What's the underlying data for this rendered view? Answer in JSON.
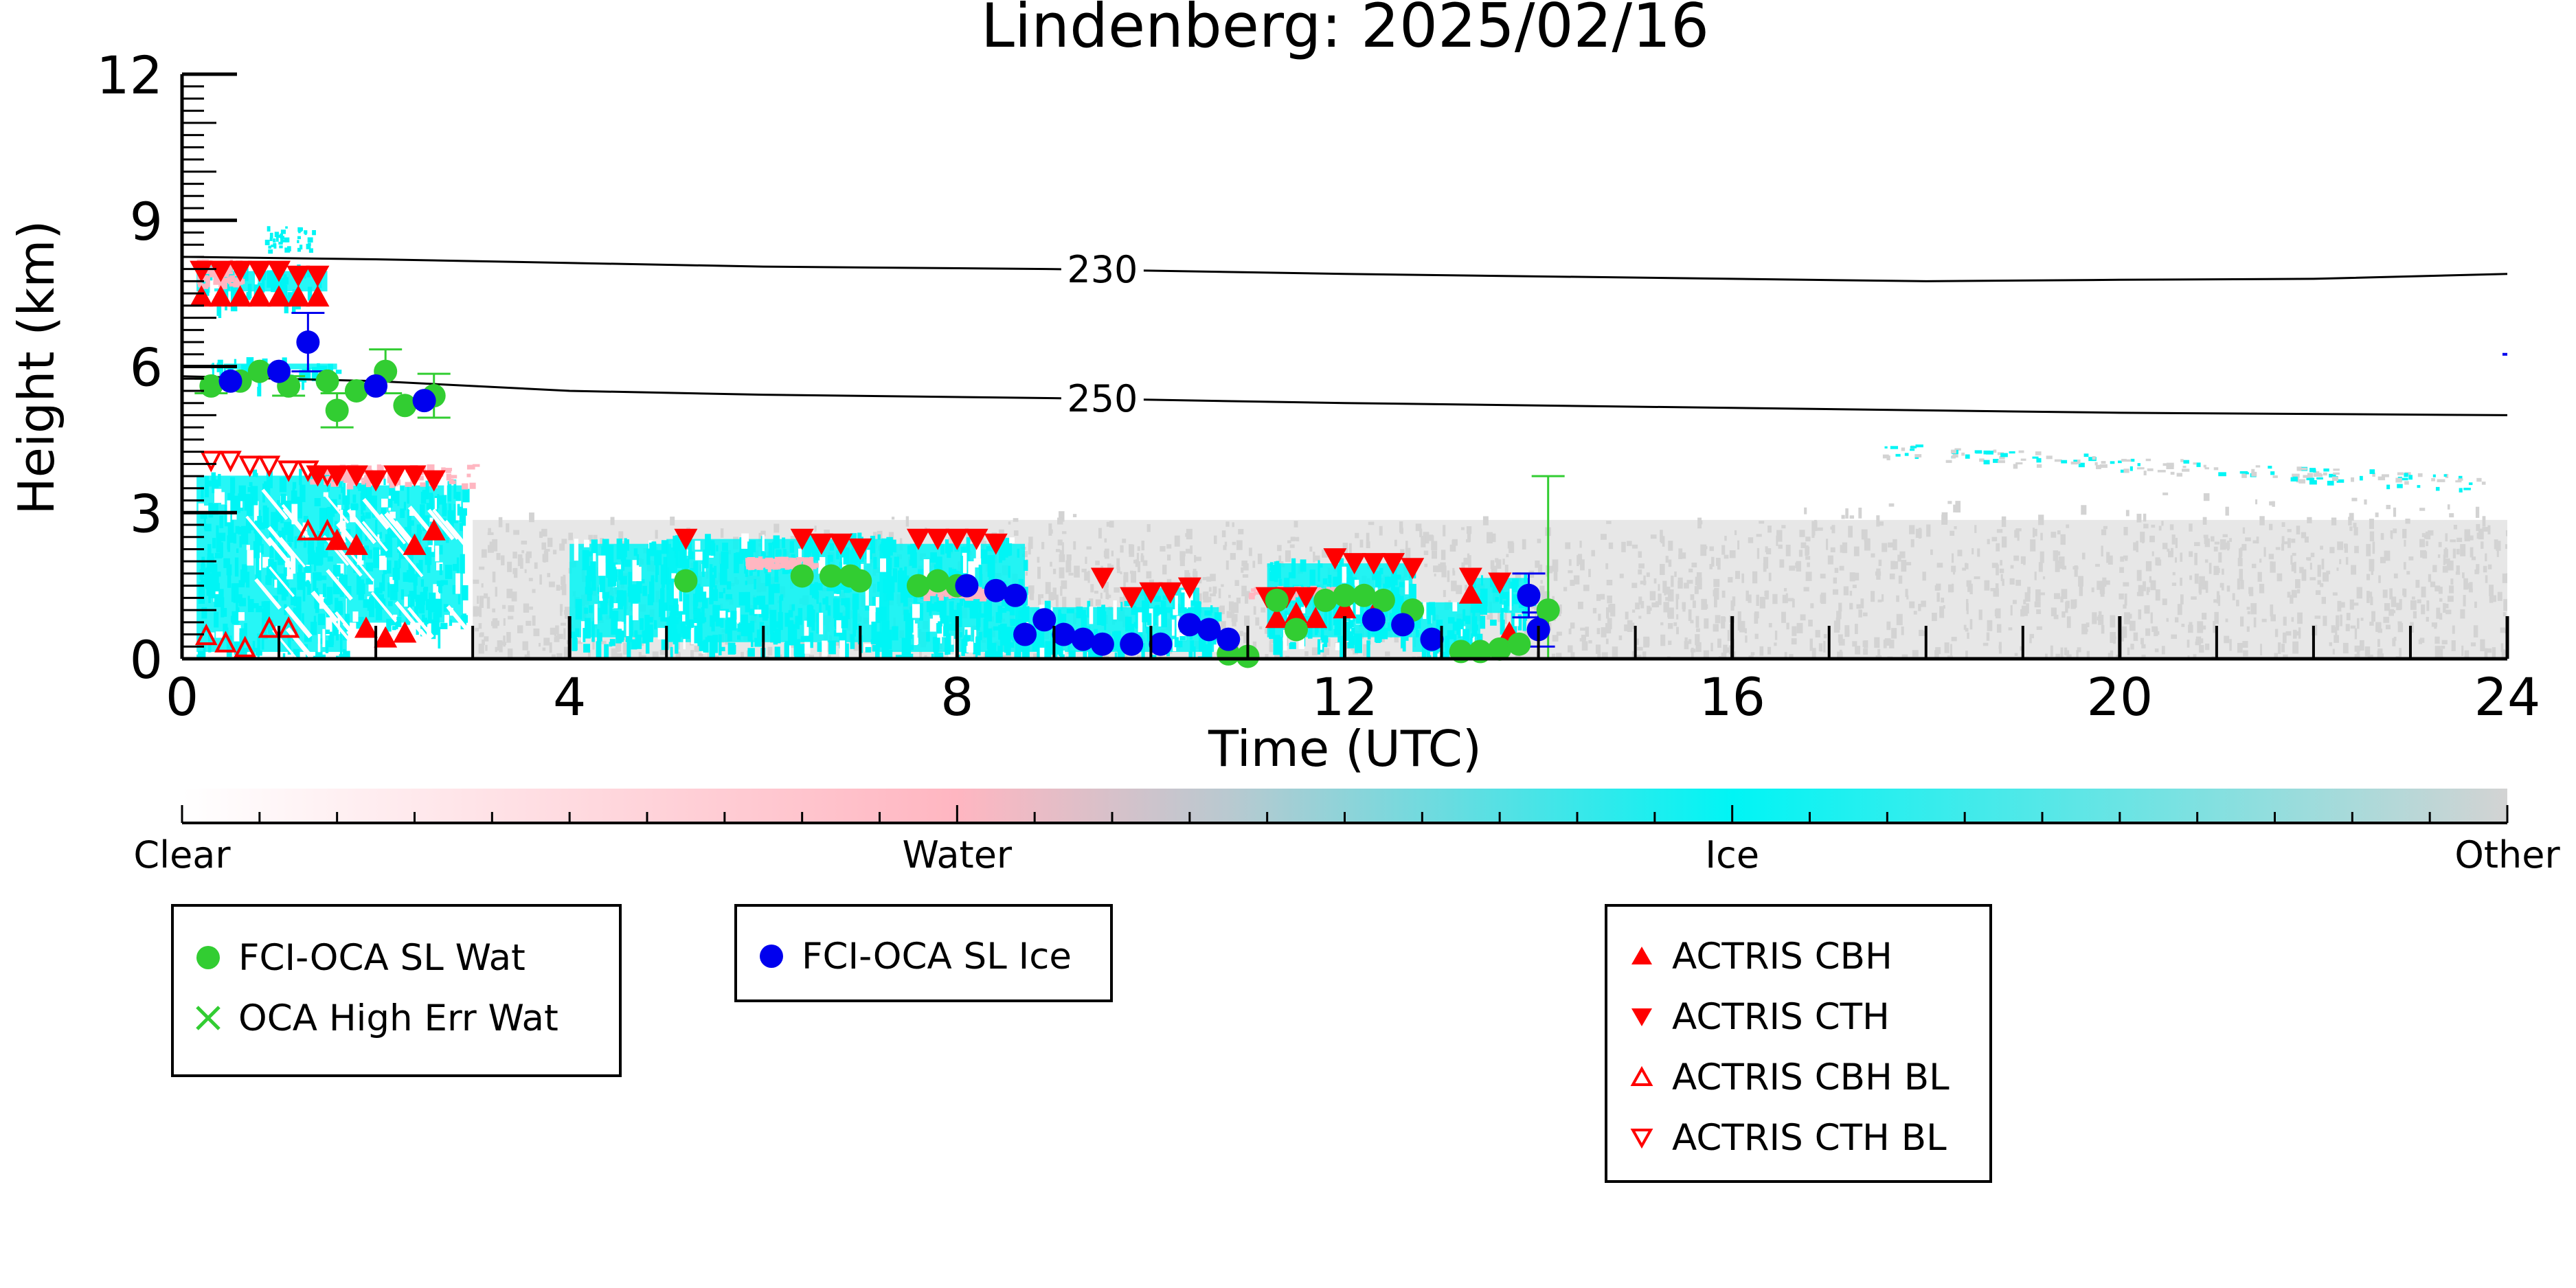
{
  "chart_data": {
    "type": "scatter",
    "title": "Lindenberg: 2025/02/16",
    "xlabel": "Time (UTC)",
    "ylabel": "Height (km)",
    "xlim": [
      0,
      24
    ],
    "ylim": [
      0,
      12
    ],
    "xticks": [
      0,
      4,
      8,
      12,
      16,
      20,
      24
    ],
    "yticks": [
      0,
      3,
      6,
      9,
      12
    ],
    "xtick_labels": [
      "0",
      "4",
      "8",
      "12",
      "16",
      "20",
      "24"
    ],
    "ytick_labels": [
      "0",
      "3",
      "6",
      "9",
      "12"
    ],
    "contours": [
      {
        "label": "230",
        "label_x": 9.5,
        "points": [
          [
            0,
            8.25
          ],
          [
            2,
            8.2
          ],
          [
            6,
            8.05
          ],
          [
            9,
            8.0
          ],
          [
            12,
            7.9
          ],
          [
            16,
            7.8
          ],
          [
            18,
            7.75
          ],
          [
            20,
            7.78
          ],
          [
            22,
            7.8
          ],
          [
            24,
            7.9
          ]
        ]
      },
      {
        "label": "250",
        "label_x": 9.5,
        "points": [
          [
            0,
            5.8
          ],
          [
            2,
            5.7
          ],
          [
            4,
            5.5
          ],
          [
            6,
            5.42
          ],
          [
            9,
            5.35
          ],
          [
            12,
            5.25
          ],
          [
            16,
            5.15
          ],
          [
            20,
            5.05
          ],
          [
            24,
            5.0
          ]
        ]
      }
    ],
    "colorbar": {
      "labels": [
        "Clear",
        "Water",
        "Ice",
        "Other"
      ],
      "colors": [
        "#ffffff",
        "#ffb6c1",
        "#00f5f5",
        "#d3d3d3"
      ]
    },
    "series": [
      {
        "name": "FCI-OCA SL Wat",
        "marker": "circle",
        "color": "#32cd32",
        "points": [
          [
            0.3,
            5.6
          ],
          [
            0.6,
            5.7
          ],
          [
            0.8,
            5.9
          ],
          [
            1.1,
            5.6
          ],
          [
            1.5,
            5.7
          ],
          [
            1.6,
            5.1
          ],
          [
            1.8,
            5.5
          ],
          [
            2.1,
            5.9
          ],
          [
            2.3,
            5.2
          ],
          [
            2.6,
            5.4
          ],
          [
            5.2,
            1.6
          ],
          [
            6.4,
            1.7
          ],
          [
            6.7,
            1.7
          ],
          [
            6.9,
            1.7
          ],
          [
            7.0,
            1.6
          ],
          [
            7.6,
            1.5
          ],
          [
            7.8,
            1.6
          ],
          [
            8.0,
            1.5
          ],
          [
            10.8,
            0.1
          ],
          [
            11.0,
            0.05
          ],
          [
            11.3,
            1.2
          ],
          [
            11.5,
            0.6
          ],
          [
            11.8,
            1.2
          ],
          [
            12.0,
            1.3
          ],
          [
            12.2,
            1.3
          ],
          [
            12.4,
            1.2
          ],
          [
            12.7,
            1.0
          ],
          [
            13.2,
            0.15
          ],
          [
            13.4,
            0.15
          ],
          [
            13.6,
            0.2
          ],
          [
            13.8,
            0.3
          ],
          [
            14.1,
            1.0
          ]
        ],
        "errors": [
          [
            0.3,
            0.15
          ],
          [
            1.1,
            0.2
          ],
          [
            1.6,
            0.35
          ],
          [
            2.1,
            0.45
          ],
          [
            2.6,
            0.45
          ],
          [
            14.1,
            2.75
          ]
        ]
      },
      {
        "name": "OCA High Err Wat",
        "marker": "x",
        "color": "#32cd32",
        "points": []
      },
      {
        "name": "FCI-OCA SL Ice",
        "marker": "circle",
        "color": "#0000ee",
        "points": [
          [
            0.5,
            5.7
          ],
          [
            1.0,
            5.9
          ],
          [
            1.3,
            6.5
          ],
          [
            2.0,
            5.6
          ],
          [
            2.5,
            5.3
          ],
          [
            8.1,
            1.5
          ],
          [
            8.4,
            1.4
          ],
          [
            8.6,
            1.3
          ],
          [
            8.7,
            0.5
          ],
          [
            8.9,
            0.8
          ],
          [
            9.1,
            0.5
          ],
          [
            9.3,
            0.4
          ],
          [
            9.5,
            0.3
          ],
          [
            9.8,
            0.3
          ],
          [
            10.1,
            0.3
          ],
          [
            10.4,
            0.7
          ],
          [
            10.6,
            0.6
          ],
          [
            10.8,
            0.4
          ],
          [
            12.3,
            0.8
          ],
          [
            12.6,
            0.7
          ],
          [
            12.9,
            0.4
          ],
          [
            13.9,
            1.3
          ],
          [
            14.0,
            0.6
          ]
        ],
        "errors": [
          [
            1.3,
            0.6
          ],
          [
            13.9,
            0.45
          ],
          [
            14.0,
            0.35
          ]
        ]
      },
      {
        "name": "ACTRIS CBH",
        "marker": "triangle-up-filled",
        "color": "#ff0000",
        "points": [
          [
            0.2,
            7.4
          ],
          [
            0.4,
            7.4
          ],
          [
            0.6,
            7.4
          ],
          [
            0.8,
            7.4
          ],
          [
            1.0,
            7.4
          ],
          [
            1.2,
            7.4
          ],
          [
            1.4,
            7.4
          ],
          [
            1.6,
            2.4
          ],
          [
            1.8,
            2.3
          ],
          [
            1.9,
            0.6
          ],
          [
            2.1,
            0.4
          ],
          [
            2.3,
            0.5
          ],
          [
            2.4,
            2.3
          ],
          [
            2.6,
            2.6
          ],
          [
            11.3,
            0.8
          ],
          [
            11.5,
            0.9
          ],
          [
            11.7,
            0.8
          ],
          [
            12.0,
            1.0
          ],
          [
            12.3,
            0.9
          ],
          [
            13.3,
            1.3
          ],
          [
            13.7,
            0.5
          ]
        ]
      },
      {
        "name": "ACTRIS CTH",
        "marker": "triangle-down-filled",
        "color": "#ff0000",
        "points": [
          [
            0.2,
            8.0
          ],
          [
            0.4,
            8.0
          ],
          [
            0.6,
            8.0
          ],
          [
            0.8,
            8.0
          ],
          [
            1.0,
            8.0
          ],
          [
            1.2,
            7.9
          ],
          [
            1.4,
            7.9
          ],
          [
            1.4,
            3.8
          ],
          [
            1.6,
            3.8
          ],
          [
            1.8,
            3.8
          ],
          [
            2.0,
            3.7
          ],
          [
            2.2,
            3.8
          ],
          [
            2.4,
            3.8
          ],
          [
            2.6,
            3.7
          ],
          [
            5.2,
            2.5
          ],
          [
            6.4,
            2.5
          ],
          [
            6.6,
            2.4
          ],
          [
            6.8,
            2.4
          ],
          [
            7.0,
            2.3
          ],
          [
            7.6,
            2.5
          ],
          [
            7.8,
            2.5
          ],
          [
            8.0,
            2.5
          ],
          [
            8.2,
            2.5
          ],
          [
            8.4,
            2.4
          ],
          [
            9.5,
            1.7
          ],
          [
            9.8,
            1.3
          ],
          [
            10.0,
            1.4
          ],
          [
            10.2,
            1.4
          ],
          [
            10.4,
            1.5
          ],
          [
            11.2,
            1.3
          ],
          [
            11.4,
            1.3
          ],
          [
            11.6,
            1.3
          ],
          [
            11.9,
            2.1
          ],
          [
            12.1,
            2.0
          ],
          [
            12.3,
            2.0
          ],
          [
            12.5,
            2.0
          ],
          [
            12.7,
            1.9
          ],
          [
            13.3,
            1.7
          ],
          [
            13.6,
            1.6
          ]
        ]
      },
      {
        "name": "ACTRIS CBH BL",
        "marker": "triangle-up-open",
        "color": "#ff0000",
        "points": [
          [
            0.25,
            0.45
          ],
          [
            0.45,
            0.3
          ],
          [
            0.65,
            0.2
          ],
          [
            0.9,
            0.6
          ],
          [
            1.1,
            0.6
          ],
          [
            1.3,
            2.6
          ],
          [
            1.5,
            2.6
          ]
        ]
      },
      {
        "name": "ACTRIS CTH BL",
        "marker": "triangle-down-open",
        "color": "#ff0000",
        "points": [
          [
            0.3,
            4.1
          ],
          [
            0.5,
            4.1
          ],
          [
            0.7,
            4.0
          ],
          [
            0.9,
            4.0
          ],
          [
            1.1,
            3.9
          ],
          [
            1.3,
            3.9
          ],
          [
            1.5,
            3.8
          ]
        ]
      }
    ]
  },
  "legends": {
    "wat": [
      "FCI-OCA SL Wat",
      "OCA High Err Wat"
    ],
    "ice": [
      "FCI-OCA SL Ice"
    ],
    "actris": [
      "ACTRIS CBH",
      "ACTRIS CTH",
      "ACTRIS CBH BL",
      "ACTRIS CTH BL"
    ]
  }
}
